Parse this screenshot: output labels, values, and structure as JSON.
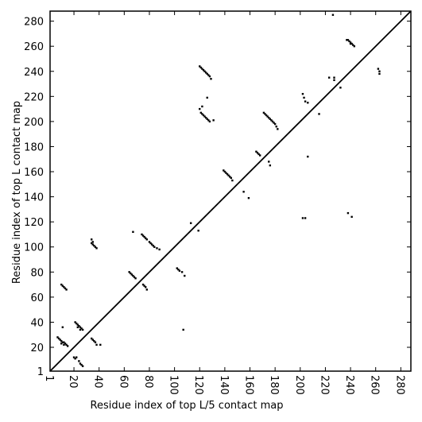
{
  "chart_data": {
    "type": "scatter",
    "x_label": "Residue index of top L/5 contact map",
    "y_label": "Residue index of top L contact map",
    "color": "#000000",
    "xlim": [
      1,
      288
    ],
    "ylim": [
      1,
      288
    ],
    "xticks": [
      1,
      20,
      40,
      60,
      80,
      100,
      120,
      140,
      160,
      180,
      200,
      220,
      240,
      260,
      280
    ],
    "yticks": [
      1,
      20,
      40,
      60,
      80,
      100,
      120,
      140,
      160,
      180,
      200,
      220,
      240,
      260,
      280
    ],
    "diagonal": true,
    "x": [
      10,
      11,
      12,
      13,
      14,
      7,
      8,
      9,
      10,
      11,
      12,
      13,
      14,
      15,
      10,
      12,
      11,
      21,
      22,
      23,
      24,
      25,
      26,
      27,
      23,
      25,
      20,
      21,
      22,
      24,
      25,
      26,
      27,
      34,
      35,
      36,
      37,
      38,
      41,
      34,
      34,
      35,
      36,
      37,
      38,
      35,
      64,
      65,
      66,
      67,
      68,
      69,
      67,
      74,
      75,
      76,
      77,
      78,
      80,
      81,
      82,
      83,
      84,
      86,
      88,
      75,
      76,
      77,
      78,
      102,
      103,
      104,
      106,
      108,
      107,
      113,
      119,
      120,
      121,
      122,
      123,
      124,
      125,
      126,
      127,
      128,
      129,
      126,
      120,
      121,
      122,
      123,
      124,
      125,
      126,
      127,
      128,
      131,
      122,
      139,
      140,
      141,
      142,
      143,
      144,
      145,
      146,
      155,
      159,
      165,
      166,
      167,
      168,
      171,
      172,
      173,
      174,
      175,
      176,
      177,
      178,
      179,
      180,
      181,
      182,
      175,
      176,
      202,
      203,
      204,
      206,
      202,
      204,
      206,
      215,
      223,
      227,
      227,
      226,
      232,
      237,
      238,
      239,
      240,
      241,
      242,
      243,
      238,
      241,
      240,
      262,
      263,
      263
    ],
    "values": [
      70,
      69,
      68,
      67,
      66,
      28,
      27,
      26,
      25,
      24,
      24,
      23,
      22,
      21,
      23,
      22,
      36,
      40,
      39,
      38,
      37,
      36,
      35,
      34,
      36,
      34,
      12,
      11,
      12,
      9,
      7,
      6,
      5,
      27,
      26,
      25,
      24,
      22,
      22,
      106,
      103,
      102,
      101,
      100,
      99,
      104,
      80,
      79,
      78,
      77,
      76,
      75,
      112,
      110,
      109,
      108,
      107,
      106,
      104,
      103,
      102,
      101,
      100,
      99,
      98,
      70,
      69,
      68,
      66,
      83,
      82,
      81,
      80,
      77,
      34,
      119,
      113,
      244,
      243,
      242,
      241,
      240,
      239,
      238,
      237,
      236,
      234,
      219,
      210,
      207,
      206,
      205,
      204,
      203,
      202,
      201,
      200,
      201,
      212,
      161,
      160,
      159,
      158,
      157,
      156,
      155,
      153,
      144,
      139,
      176,
      175,
      174,
      173,
      207,
      206,
      205,
      204,
      203,
      202,
      201,
      200,
      199,
      198,
      196,
      194,
      168,
      165,
      222,
      219,
      216,
      215,
      123,
      123,
      172,
      206,
      235,
      235,
      233,
      285,
      227,
      265,
      265,
      264,
      263,
      262,
      261,
      260,
      127,
      124,
      262,
      242,
      240,
      238
    ]
  }
}
